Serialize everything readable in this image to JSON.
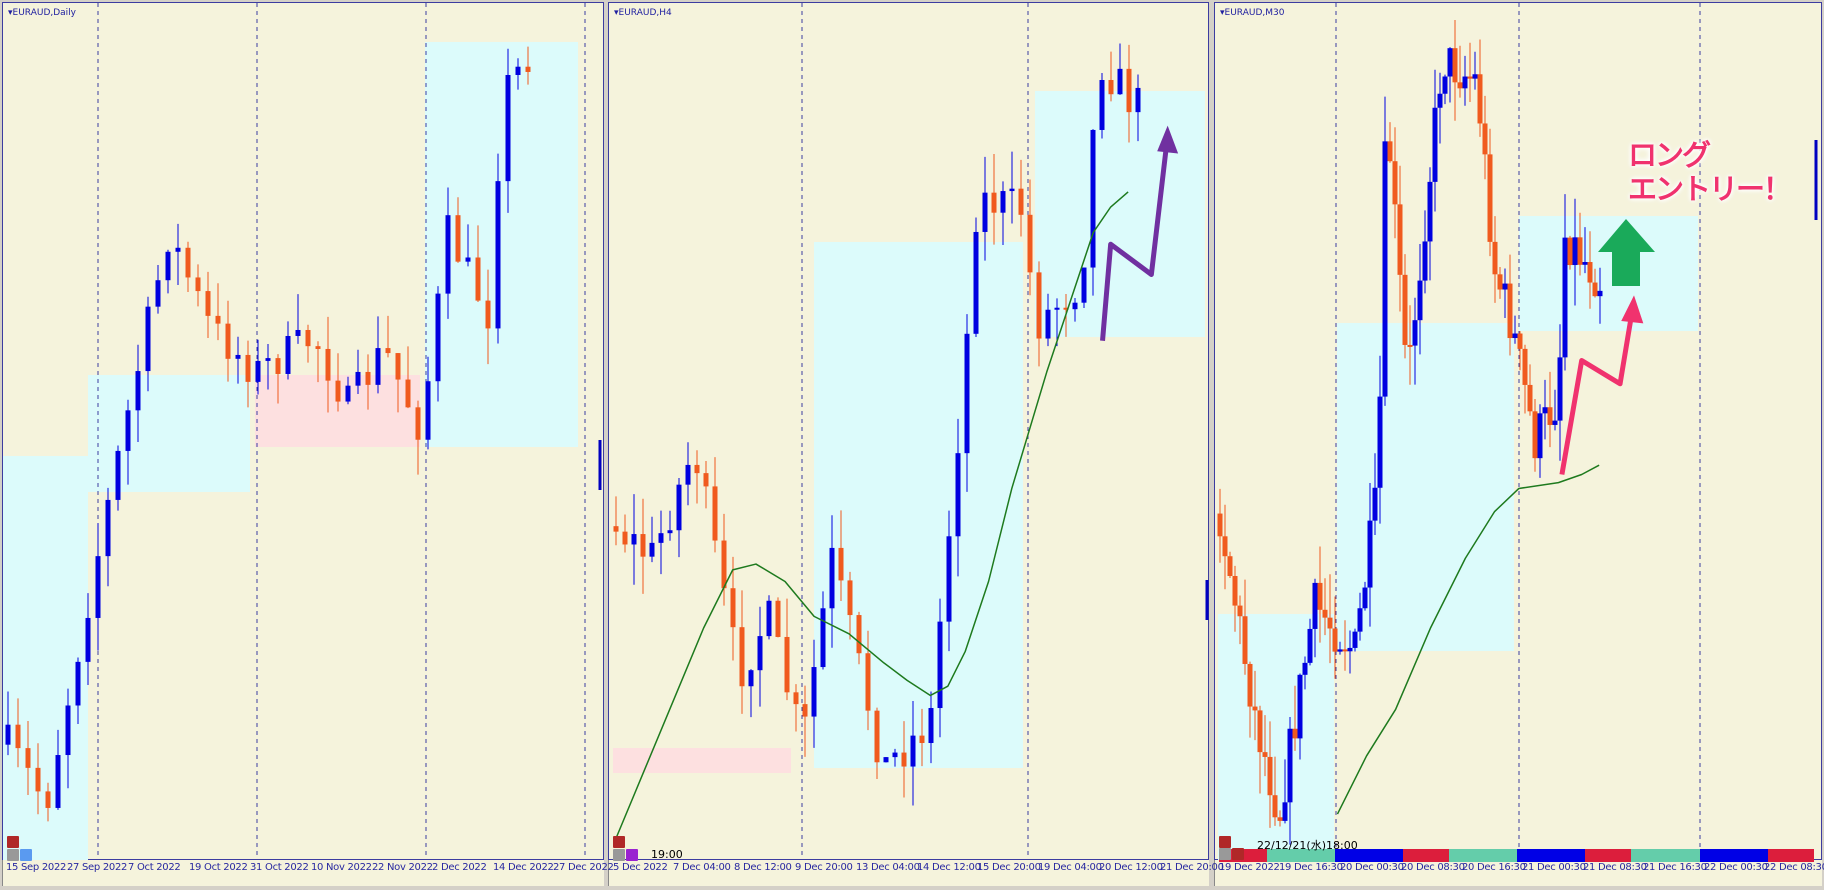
{
  "panels": [
    {
      "title": "EURAUD,Daily",
      "axis_labels": [
        "15 Sep 2022",
        "27 Sep 2022",
        "7 Oct 2022",
        "19 Oct 2022",
        "31 Oct 2022",
        "10 Nov 2022",
        "22 Nov 2022",
        "2 Dec 2022",
        "14 Dec 2022",
        "27 Dec 2022"
      ]
    },
    {
      "title": "EURAUD,H4",
      "stamp": "19:00",
      "axis_labels": [
        "5 Dec 2022",
        "7 Dec 04:00",
        "8 Dec 12:00",
        "9 Dec 20:00",
        "13 Dec 04:00",
        "14 Dec 12:00",
        "15 Dec 20:00",
        "19 Dec 04:00",
        "20 Dec 12:00",
        "21 Dec 20:00"
      ]
    },
    {
      "title": "EURAUD,M30",
      "stamp": "22/12/21(水)18:00",
      "axis_labels": [
        "19 Dec 2022",
        "19 Dec 16:30",
        "20 Dec 00:30",
        "20 Dec 08:30",
        "20 Dec 16:30",
        "21 Dec 00:30",
        "21 Dec 08:30",
        "21 Dec 16:30",
        "22 Dec 00:30",
        "22 Dec 08:30"
      ]
    }
  ],
  "annotation": {
    "line1": "ロング",
    "line2": "エントリー！"
  },
  "colors": {
    "bull": "#0000e0",
    "bear": "#f05a1e",
    "ma": "#1e7a1e",
    "zone_cyan": "#dcfbfb",
    "zone_pink": "#fde0e0",
    "arrow_purple": "#7030a0",
    "arrow_pink": "#f0326e",
    "arrow_green": "#1aaa5a",
    "background": "#f5f3dc"
  },
  "session_bar": [
    "red",
    "teal",
    "blue",
    "red",
    "teal",
    "blue",
    "red",
    "teal",
    "blue",
    "red"
  ]
}
